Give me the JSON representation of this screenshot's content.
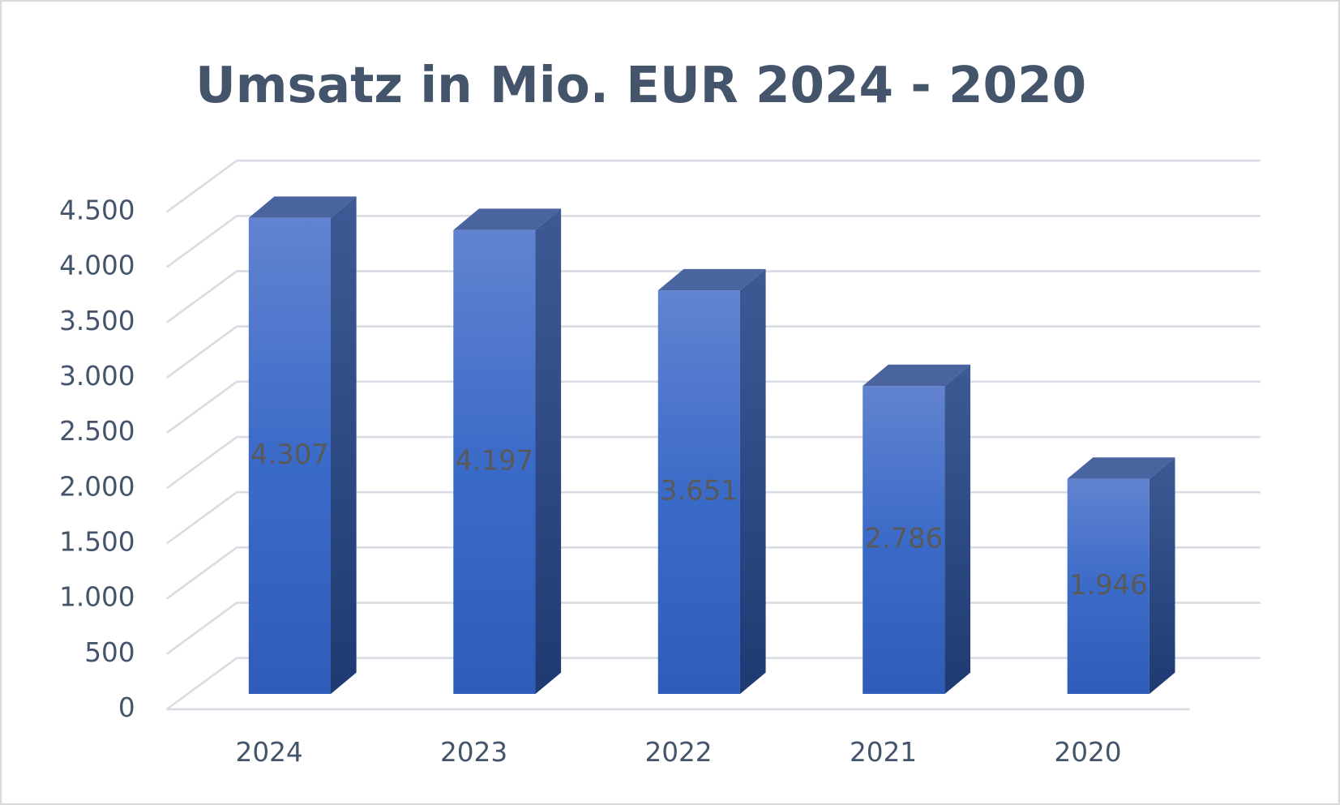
{
  "chart_data": {
    "type": "bar3d",
    "title": "Umsatz in Mio. EUR 2024 - 2020",
    "categories": [
      "2024",
      "2023",
      "2022",
      "2021",
      "2020"
    ],
    "values": [
      4307,
      4197,
      3651,
      2786,
      1946
    ],
    "value_labels": [
      "4.307",
      "4.197",
      "3.651",
      "2.786",
      "1.946"
    ],
    "color": "#4472c4",
    "ylim": [
      0,
      4500
    ],
    "yticks": [
      0,
      500,
      {
        "value": 1000,
        "label": "1.000"
      },
      {
        "value": 1500,
        "label": "1.500"
      },
      {
        "value": 2000,
        "label": "2.000"
      },
      {
        "value": 2500,
        "label": "2.500"
      },
      {
        "value": 3000,
        "label": "3.000"
      },
      {
        "value": 3500,
        "label": "3.500"
      },
      {
        "value": 4000,
        "label": "4.000"
      },
      {
        "value": 4500,
        "label": "4.500"
      }
    ],
    "grid": true
  }
}
